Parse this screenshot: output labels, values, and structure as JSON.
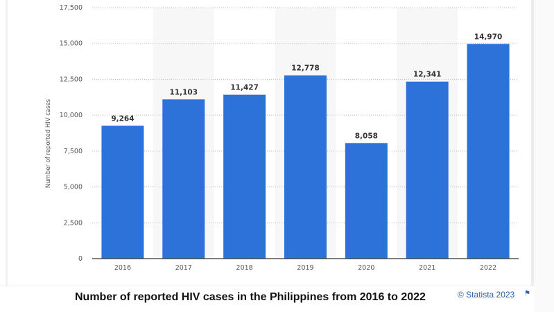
{
  "chart_data": {
    "type": "bar",
    "title": "Number of reported HIV cases in the Philippines from 2016 to 2022",
    "xlabel": "",
    "ylabel": "Number of reported HIV cases",
    "categories": [
      "2016",
      "2017",
      "2018",
      "2019",
      "2020",
      "2021",
      "2022"
    ],
    "values": [
      9264,
      11103,
      11427,
      12778,
      8058,
      12341,
      14970
    ],
    "value_labels": [
      "9,264",
      "11,103",
      "11,427",
      "12,778",
      "8,058",
      "12,341",
      "14,970"
    ],
    "ylim": [
      0,
      17500
    ],
    "yticks": [
      0,
      2500,
      5000,
      7500,
      10000,
      12500,
      15000,
      17500
    ],
    "ytick_labels": [
      "0",
      "2,500",
      "5,000",
      "7,500",
      "10,000",
      "12,500",
      "15,000",
      "17,500"
    ],
    "grid": true,
    "bar_color": "#2c72d8"
  },
  "credit": "© Statista 2023",
  "flag_icon": "flag-icon"
}
